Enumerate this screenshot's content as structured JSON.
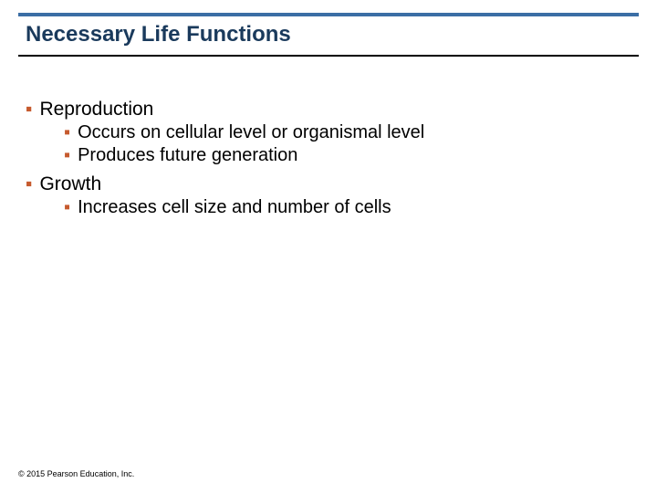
{
  "colors": {
    "rule": "#3b6ea5",
    "orange": "#c65a2e",
    "underline": "#000000",
    "text": "#000000"
  },
  "title": {
    "text": "Necessary Life Functions",
    "fontsize": 24,
    "color": "#1a3a5c"
  },
  "bullets": {
    "lvl1_fontsize": 21,
    "lvl2_fontsize": 20,
    "bullet_char": "▪",
    "items": [
      {
        "label": "Reproduction",
        "children": [
          {
            "label": "Occurs on cellular level or organismal level"
          },
          {
            "label": "Produces future generation"
          }
        ]
      },
      {
        "label": "Growth",
        "children": [
          {
            "label": "Increases cell size and number of cells"
          }
        ]
      }
    ]
  },
  "copyright": {
    "text": "© 2015 Pearson Education, Inc.",
    "fontsize": 9,
    "color": "#000000"
  }
}
